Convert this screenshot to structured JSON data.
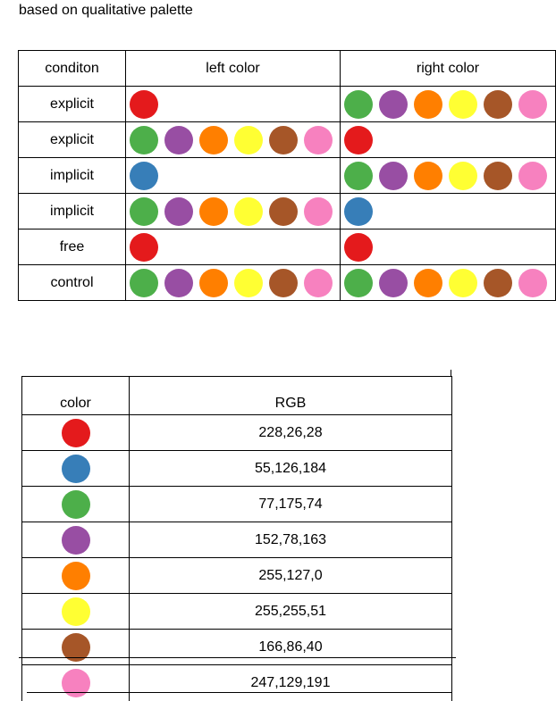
{
  "title": "based on qualitative palette",
  "colors": {
    "red": "#e41a1c",
    "blue": "#377eb8",
    "green": "#4daf4a",
    "purple": "#984ea3",
    "orange": "#ff7f00",
    "yellow": "#ffff33",
    "brown": "#a65628",
    "pink": "#f781bf"
  },
  "condition_table": {
    "headers": [
      "conditon",
      "left color",
      "right color"
    ],
    "rows": [
      {
        "condition": "explicit",
        "left": [
          "red"
        ],
        "right": [
          "green",
          "purple",
          "orange",
          "yellow",
          "brown",
          "pink"
        ]
      },
      {
        "condition": "explicit",
        "left": [
          "green",
          "purple",
          "orange",
          "yellow",
          "brown",
          "pink"
        ],
        "right": [
          "red"
        ]
      },
      {
        "condition": "implicit",
        "left": [
          "blue"
        ],
        "right": [
          "green",
          "purple",
          "orange",
          "yellow",
          "brown",
          "pink"
        ]
      },
      {
        "condition": "implicit",
        "left": [
          "green",
          "purple",
          "orange",
          "yellow",
          "brown",
          "pink"
        ],
        "right": [
          "blue"
        ]
      },
      {
        "condition": "free",
        "left": [
          "red"
        ],
        "right": [
          "red"
        ]
      },
      {
        "condition": "control",
        "left": [
          "green",
          "purple",
          "orange",
          "yellow",
          "brown",
          "pink"
        ],
        "right": [
          "green",
          "purple",
          "orange",
          "yellow",
          "brown",
          "pink"
        ]
      }
    ]
  },
  "rgb_table": {
    "headers": [
      "color",
      "RGB"
    ],
    "rows": [
      {
        "color": "red",
        "rgb": "228,26,28"
      },
      {
        "color": "blue",
        "rgb": "55,126,184"
      },
      {
        "color": "green",
        "rgb": "77,175,74"
      },
      {
        "color": "purple",
        "rgb": "152,78,163"
      },
      {
        "color": "orange",
        "rgb": "255,127,0"
      },
      {
        "color": "yellow",
        "rgb": "255,255,51"
      },
      {
        "color": "brown",
        "rgb": "166,86,40"
      },
      {
        "color": "pink",
        "rgb": "247,129,191"
      }
    ]
  }
}
